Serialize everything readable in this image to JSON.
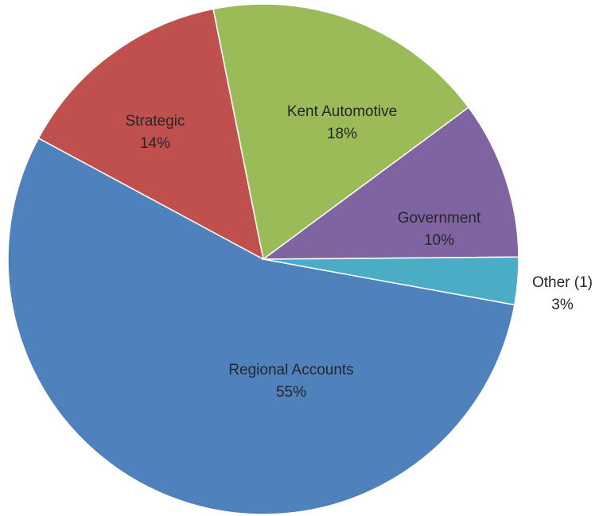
{
  "chart_data": {
    "type": "pie",
    "categories": [
      "Regional Accounts",
      "Strategic",
      "Kent Automotive",
      "Government",
      "Other (1)"
    ],
    "values": [
      55,
      14,
      18,
      10,
      3
    ],
    "value_labels": [
      "55%",
      "14%",
      "18%",
      "10%",
      "3%"
    ],
    "colors": [
      "#4f81bd",
      "#c0504d",
      "#9bbb59",
      "#8064a2",
      "#4bacc6"
    ]
  }
}
